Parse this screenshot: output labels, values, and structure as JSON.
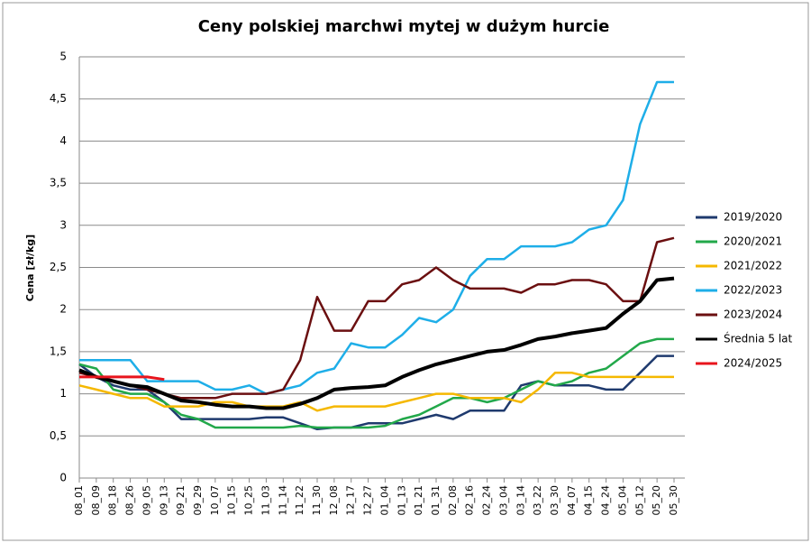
{
  "chart_data": {
    "type": "line",
    "title": "Ceny polskiej marchwi mytej w dużym hurcie",
    "y_label": "Cena [zł/kg]",
    "x": [
      "08_01",
      "08_09",
      "08_18",
      "08_26",
      "09_05",
      "09_13",
      "09_21",
      "09_29",
      "10_07",
      "10_15",
      "10_25",
      "11_03",
      "11_14",
      "11_22",
      "11_30",
      "12_08",
      "12_17",
      "12_27",
      "01_04",
      "01_13",
      "01_21",
      "01_31",
      "02_08",
      "02_16",
      "02_24",
      "03_04",
      "03_14",
      "03_22",
      "03_30",
      "04_07",
      "04_15",
      "04_24",
      "05_04",
      "05_12",
      "05_20",
      "05_30"
    ],
    "ylim": [
      0,
      5
    ],
    "yticks": [
      0,
      {
        "value": 0.5,
        "label": "0,5"
      },
      1,
      {
        "value": 1.5,
        "label": "1,5"
      },
      2,
      {
        "value": 2.5,
        "label": "2,5"
      },
      3,
      {
        "value": 3.5,
        "label": "3,5"
      },
      4,
      {
        "value": 4.5,
        "label": "4,5"
      },
      5
    ],
    "grid": true,
    "legend": "right",
    "series": [
      {
        "name": "2019/2020",
        "color": "#1f3a6e",
        "width": 2.5,
        "values": [
          1.35,
          1.2,
          1.1,
          1.05,
          1.05,
          0.9,
          0.7,
          0.7,
          0.7,
          0.7,
          0.7,
          0.72,
          0.72,
          0.65,
          0.58,
          0.6,
          0.6,
          0.65,
          0.65,
          0.65,
          0.7,
          0.75,
          0.7,
          0.8,
          0.8,
          0.8,
          1.1,
          1.15,
          1.1,
          1.1,
          1.1,
          1.05,
          1.05,
          1.25,
          1.45,
          1.45
        ]
      },
      {
        "name": "2020/2021",
        "color": "#22a84a",
        "width": 2.5,
        "values": [
          1.35,
          1.3,
          1.05,
          1.0,
          1.0,
          0.9,
          0.75,
          0.7,
          0.6,
          0.6,
          0.6,
          0.6,
          0.6,
          0.62,
          0.6,
          0.6,
          0.6,
          0.6,
          0.62,
          0.7,
          0.75,
          0.85,
          0.95,
          0.95,
          0.9,
          0.95,
          1.05,
          1.15,
          1.1,
          1.15,
          1.25,
          1.3,
          1.45,
          1.6,
          1.65,
          1.65
        ]
      },
      {
        "name": "2021/2022",
        "color": "#f5b800",
        "width": 2.5,
        "values": [
          1.1,
          1.05,
          1.0,
          0.95,
          0.95,
          0.85,
          0.85,
          0.85,
          0.9,
          0.9,
          0.85,
          0.85,
          0.85,
          0.9,
          0.8,
          0.85,
          0.85,
          0.85,
          0.85,
          0.9,
          0.95,
          1.0,
          1.0,
          0.95,
          0.95,
          0.95,
          0.9,
          1.05,
          1.25,
          1.25,
          1.2,
          1.2,
          1.2,
          1.2,
          1.2,
          1.2
        ]
      },
      {
        "name": "2022/2023",
        "color": "#1eaee8",
        "width": 2.5,
        "values": [
          1.4,
          1.4,
          1.4,
          1.4,
          1.15,
          1.15,
          1.15,
          1.15,
          1.05,
          1.05,
          1.1,
          1.0,
          1.05,
          1.1,
          1.25,
          1.3,
          1.6,
          1.55,
          1.55,
          1.7,
          1.9,
          1.85,
          2.0,
          2.4,
          2.6,
          2.6,
          2.75,
          2.75,
          2.75,
          2.8,
          2.95,
          3.0,
          3.3,
          4.2,
          4.7,
          4.7
        ]
      },
      {
        "name": "2023/2024",
        "color": "#6b0f10",
        "width": 2.5,
        "values": [
          1.25,
          1.2,
          1.15,
          1.1,
          1.05,
          1.0,
          0.95,
          0.95,
          0.95,
          1.0,
          1.0,
          1.0,
          1.05,
          1.4,
          2.15,
          1.75,
          1.75,
          2.1,
          2.1,
          2.3,
          2.35,
          2.5,
          2.35,
          2.25,
          2.25,
          2.25,
          2.2,
          2.3,
          2.3,
          2.35,
          2.35,
          2.3,
          2.1,
          2.1,
          2.8,
          2.85
        ]
      },
      {
        "name": "Średnia 5 lat",
        "color": "#000000",
        "width": 4,
        "values": [
          1.28,
          1.2,
          1.15,
          1.1,
          1.08,
          1.0,
          0.92,
          0.9,
          0.87,
          0.85,
          0.85,
          0.83,
          0.83,
          0.88,
          0.95,
          1.05,
          1.07,
          1.08,
          1.1,
          1.2,
          1.28,
          1.35,
          1.4,
          1.45,
          1.5,
          1.52,
          1.58,
          1.65,
          1.68,
          1.72,
          1.75,
          1.78,
          1.95,
          2.1,
          2.35,
          2.37
        ]
      },
      {
        "name": "2024/2025",
        "color": "#e8141c",
        "width": 3,
        "values": [
          1.2,
          1.2,
          1.2,
          1.2,
          1.2,
          1.17,
          null,
          null,
          null,
          null,
          null,
          null,
          null,
          null,
          null,
          null,
          null,
          null,
          null,
          null,
          null,
          null,
          null,
          null,
          null,
          null,
          null,
          null,
          null,
          null,
          null,
          null,
          null,
          null,
          null,
          null
        ]
      }
    ]
  }
}
